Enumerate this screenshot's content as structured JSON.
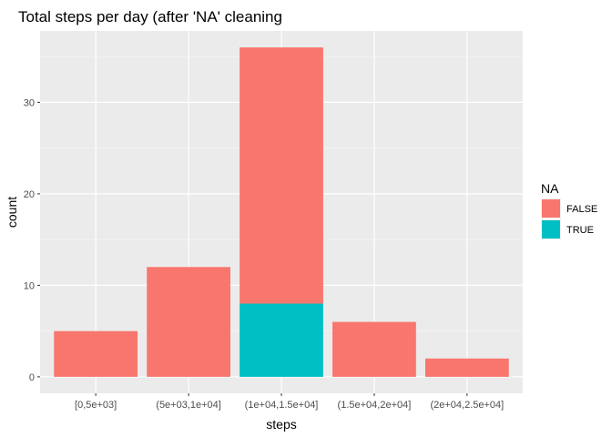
{
  "chart_data": {
    "type": "bar",
    "stacked": true,
    "title": "Total steps per day (after 'NA' cleaning",
    "xlabel": "steps",
    "ylabel": "count",
    "categories": [
      "[0,5e+03]",
      "(5e+03,1e+04]",
      "(1e+04,1.5e+04]",
      "(1.5e+04,2e+04]",
      "(2e+04,2.5e+04]"
    ],
    "series": [
      {
        "name": "FALSE",
        "color": "#F8766D",
        "values": [
          5,
          12,
          28,
          6,
          2
        ]
      },
      {
        "name": "TRUE",
        "color": "#00BFC4",
        "values": [
          0,
          0,
          8,
          0,
          0
        ]
      }
    ],
    "ylim": [
      -1.8,
      37.8
    ],
    "yticks": [
      0,
      10,
      20,
      30
    ],
    "legend": {
      "title": "NA",
      "position": "right"
    },
    "grid": true
  }
}
